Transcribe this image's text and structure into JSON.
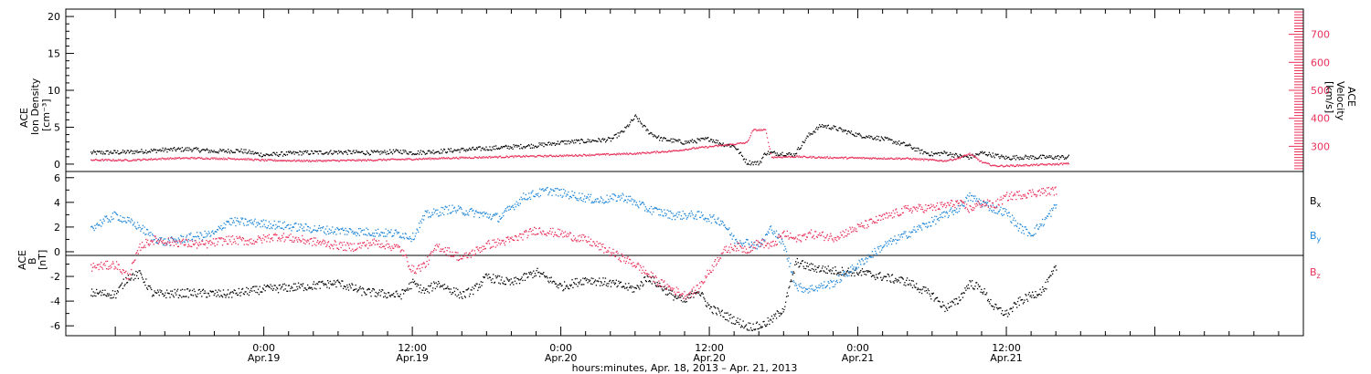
{
  "colors": {
    "black": "#000000",
    "pink": "#e8305a",
    "blue": "#1f86d8"
  },
  "chart_data": [
    {
      "type": "scatter",
      "panel": "top",
      "ylabel": [
        "ACE",
        "Ion Density",
        "[cm⁻³]"
      ],
      "ylabel_right": [
        "ACE",
        "Velocity",
        "[km/s]"
      ],
      "ylim": [
        -1,
        21
      ],
      "ylim_right": [
        210,
        790
      ],
      "yticks": [
        0,
        5,
        10,
        15,
        20
      ],
      "yticks_right": [
        300,
        400,
        500,
        600,
        700
      ],
      "series": [
        {
          "color": "#000000",
          "axis": "left",
          "points": [
            [
              -14,
              1.6
            ],
            [
              -11,
              1.7
            ],
            [
              -8,
              2.0
            ],
            [
              -6,
              2.1
            ],
            [
              -4,
              1.8
            ],
            [
              -2,
              1.9
            ],
            [
              0,
              1.3
            ],
            [
              3,
              1.6
            ],
            [
              6,
              1.7
            ],
            [
              9,
              1.6
            ],
            [
              11,
              1.8
            ],
            [
              12,
              1.6
            ],
            [
              15,
              1.9
            ],
            [
              18,
              2.2
            ],
            [
              20,
              2.4
            ],
            [
              22,
              2.6
            ],
            [
              24,
              3.0
            ],
            [
              26,
              3.2
            ],
            [
              28,
              3.4
            ],
            [
              29,
              4.5
            ],
            [
              30,
              6.5
            ],
            [
              31,
              4.5
            ],
            [
              32,
              3.5
            ],
            [
              34,
              3.0
            ],
            [
              36,
              3.5
            ],
            [
              37,
              2.8
            ],
            [
              38,
              2.5
            ],
            [
              39,
              0.3
            ],
            [
              40,
              0.2
            ],
            [
              40.5,
              1.6
            ],
            [
              42,
              1.5
            ],
            [
              42.8,
              1.3
            ],
            [
              44,
              4.0
            ],
            [
              45,
              5.3
            ],
            [
              46,
              5.0
            ],
            [
              48,
              4.0
            ],
            [
              50,
              3.5
            ],
            [
              52,
              2.6
            ],
            [
              53,
              1.8
            ],
            [
              54,
              1.4
            ],
            [
              55,
              1.6
            ],
            [
              56,
              1.2
            ],
            [
              57,
              1.0
            ],
            [
              58,
              1.6
            ],
            [
              60,
              0.9
            ],
            [
              61,
              1.0
            ],
            [
              63,
              1.0
            ],
            [
              65,
              1.0
            ]
          ]
        },
        {
          "color": "#e8305a",
          "axis": "right",
          "points": [
            [
              -14,
              253
            ],
            [
              -11,
              252
            ],
            [
              -8,
              258
            ],
            [
              -6,
              260
            ],
            [
              -2,
              257
            ],
            [
              0,
              252
            ],
            [
              4,
              250
            ],
            [
              8,
              252
            ],
            [
              12,
              256
            ],
            [
              15,
              260
            ],
            [
              18,
              263
            ],
            [
              21,
              266
            ],
            [
              24,
              268
            ],
            [
              27,
              272
            ],
            [
              30,
              276
            ],
            [
              33,
              285
            ],
            [
              35,
              296
            ],
            [
              37,
              305
            ],
            [
              38,
              310
            ],
            [
              39,
              315
            ],
            [
              39.5,
              360
            ],
            [
              40.5,
              360
            ],
            [
              41,
              263
            ],
            [
              43,
              265
            ],
            [
              45,
              262
            ],
            [
              48,
              260
            ],
            [
              52,
              258
            ],
            [
              55,
              250
            ],
            [
              56,
              258
            ],
            [
              57,
              275
            ],
            [
              58,
              245
            ],
            [
              59,
              232
            ],
            [
              60,
              232
            ],
            [
              62,
              235
            ],
            [
              64,
              238
            ],
            [
              65,
              240
            ]
          ]
        }
      ]
    },
    {
      "type": "scatter",
      "panel": "bottom",
      "ylabel": [
        "ACE",
        "B",
        "[nT]"
      ],
      "ylim": [
        -6.8,
        6.5
      ],
      "yticks": [
        -6,
        -4,
        -2,
        0,
        2,
        4,
        6
      ],
      "legend": [
        {
          "label": "B",
          "sub": "x",
          "color": "#000000"
        },
        {
          "label": "B",
          "sub": "y",
          "color": "#1f86d8"
        },
        {
          "label": "B",
          "sub": "z",
          "color": "#e8305a"
        }
      ],
      "series": [
        {
          "color": "#000000",
          "points": [
            [
              -14,
              -3.3
            ],
            [
              -12,
              -3.4
            ],
            [
              -11,
              -2.0
            ],
            [
              -10,
              -1.8
            ],
            [
              -9,
              -3.4
            ],
            [
              -6,
              -3.3
            ],
            [
              -3,
              -3.4
            ],
            [
              0,
              -3.0
            ],
            [
              3,
              -2.8
            ],
            [
              6,
              -2.5
            ],
            [
              8,
              -3.2
            ],
            [
              11,
              -3.5
            ],
            [
              12,
              -2.5
            ],
            [
              13,
              -3.2
            ],
            [
              14,
              -2.5
            ],
            [
              16,
              -3.5
            ],
            [
              17,
              -3.0
            ],
            [
              18,
              -2.0
            ],
            [
              20,
              -2.5
            ],
            [
              22,
              -1.6
            ],
            [
              24,
              -2.8
            ],
            [
              26,
              -2.2
            ],
            [
              28,
              -2.5
            ],
            [
              30,
              -3.0
            ],
            [
              31,
              -2.0
            ],
            [
              33,
              -3.5
            ],
            [
              34,
              -4.0
            ],
            [
              35,
              -3.0
            ],
            [
              36,
              -4.5
            ],
            [
              37,
              -5.0
            ],
            [
              38,
              -5.5
            ],
            [
              39,
              -6.0
            ],
            [
              40,
              -6.0
            ],
            [
              41,
              -5.5
            ],
            [
              42,
              -4.5
            ],
            [
              43,
              -0.8
            ],
            [
              44,
              -1.2
            ],
            [
              46,
              -1.5
            ],
            [
              48,
              -1.6
            ],
            [
              50,
              -2.0
            ],
            [
              52,
              -2.4
            ],
            [
              54,
              -3.5
            ],
            [
              55,
              -4.5
            ],
            [
              56,
              -4.0
            ],
            [
              57,
              -2.5
            ],
            [
              58,
              -3.0
            ],
            [
              59,
              -4.5
            ],
            [
              60,
              -5.0
            ],
            [
              61,
              -4.0
            ],
            [
              62,
              -3.5
            ],
            [
              63,
              -3.0
            ],
            [
              64,
              -1.2
            ]
          ]
        },
        {
          "color": "#1f86d8",
          "points": [
            [
              -14,
              2.0
            ],
            [
              -12,
              3.0
            ],
            [
              -10,
              2.0
            ],
            [
              -9,
              1.2
            ],
            [
              -8,
              0.8
            ],
            [
              -6,
              1.2
            ],
            [
              -4,
              1.5
            ],
            [
              -3,
              2.5
            ],
            [
              -1,
              2.4
            ],
            [
              1,
              2.2
            ],
            [
              3,
              2.0
            ],
            [
              5,
              1.8
            ],
            [
              7,
              1.7
            ],
            [
              9,
              1.6
            ],
            [
              11,
              1.5
            ],
            [
              12,
              1.2
            ],
            [
              13,
              3.0
            ],
            [
              15,
              3.5
            ],
            [
              17,
              3.2
            ],
            [
              19,
              2.8
            ],
            [
              21,
              4.5
            ],
            [
              23,
              5.0
            ],
            [
              25,
              4.6
            ],
            [
              27,
              4.2
            ],
            [
              29,
              4.5
            ],
            [
              31,
              3.5
            ],
            [
              33,
              3.0
            ],
            [
              35,
              3.0
            ],
            [
              37,
              2.5
            ],
            [
              38,
              1.0
            ],
            [
              39,
              0.8
            ],
            [
              40,
              0.5
            ],
            [
              41,
              2.0
            ],
            [
              42,
              0.5
            ],
            [
              43,
              -2.8
            ],
            [
              44,
              -3.0
            ],
            [
              46,
              -2.5
            ],
            [
              48,
              -1.0
            ],
            [
              50,
              0.5
            ],
            [
              52,
              1.5
            ],
            [
              54,
              2.5
            ],
            [
              56,
              3.5
            ],
            [
              57,
              4.5
            ],
            [
              58,
              4.0
            ],
            [
              59,
              3.5
            ],
            [
              60,
              3.2
            ],
            [
              61,
              2.0
            ],
            [
              62,
              1.5
            ],
            [
              63,
              2.5
            ],
            [
              64,
              3.8
            ]
          ]
        },
        {
          "color": "#e8305a",
          "points": [
            [
              -14,
              -1.2
            ],
            [
              -12,
              -1.0
            ],
            [
              -11,
              -2.0
            ],
            [
              -10,
              0.5
            ],
            [
              -9,
              1.0
            ],
            [
              -7,
              0.8
            ],
            [
              -5,
              0.6
            ],
            [
              -3,
              1.0
            ],
            [
              -1,
              0.9
            ],
            [
              1,
              1.3
            ],
            [
              3,
              1.0
            ],
            [
              5,
              0.7
            ],
            [
              7,
              0.4
            ],
            [
              9,
              0.8
            ],
            [
              11,
              0.3
            ],
            [
              12,
              -1.5
            ],
            [
              13,
              -1.0
            ],
            [
              14,
              0.5
            ],
            [
              16,
              -0.5
            ],
            [
              18,
              0.6
            ],
            [
              20,
              1.0
            ],
            [
              22,
              1.8
            ],
            [
              24,
              1.5
            ],
            [
              26,
              1.0
            ],
            [
              28,
              0.0
            ],
            [
              30,
              -1.0
            ],
            [
              32,
              -2.5
            ],
            [
              34,
              -3.5
            ],
            [
              35,
              -3.0
            ],
            [
              36,
              -1.5
            ],
            [
              37,
              0.0
            ],
            [
              38,
              0.5
            ],
            [
              39,
              0.2
            ],
            [
              40,
              0.8
            ],
            [
              41,
              0.5
            ],
            [
              42,
              1.5
            ],
            [
              43,
              1.0
            ],
            [
              44,
              1.5
            ],
            [
              46,
              1.2
            ],
            [
              48,
              2.0
            ],
            [
              50,
              2.8
            ],
            [
              52,
              3.5
            ],
            [
              54,
              3.6
            ],
            [
              56,
              4.0
            ],
            [
              57,
              3.5
            ],
            [
              58,
              4.0
            ],
            [
              59,
              3.8
            ],
            [
              60,
              4.5
            ],
            [
              62,
              4.8
            ],
            [
              64,
              5.0
            ]
          ]
        }
      ]
    }
  ],
  "xaxis": {
    "xlim": [
      -16,
      84
    ],
    "xlabel": "hours:minutes, Apr. 18, 2013 – Apr. 21, 2013",
    "ticks": [
      {
        "t": 0,
        "time": "0:00",
        "date": "Apr.19"
      },
      {
        "t": 12,
        "time": "12:00",
        "date": "Apr.19"
      },
      {
        "t": 24,
        "time": "0:00",
        "date": "Apr.20"
      },
      {
        "t": 36,
        "time": "12:00",
        "date": "Apr.20"
      },
      {
        "t": 48,
        "time": "0:00",
        "date": "Apr.21"
      },
      {
        "t": 60,
        "time": "12:00",
        "date": "Apr.21"
      }
    ]
  }
}
